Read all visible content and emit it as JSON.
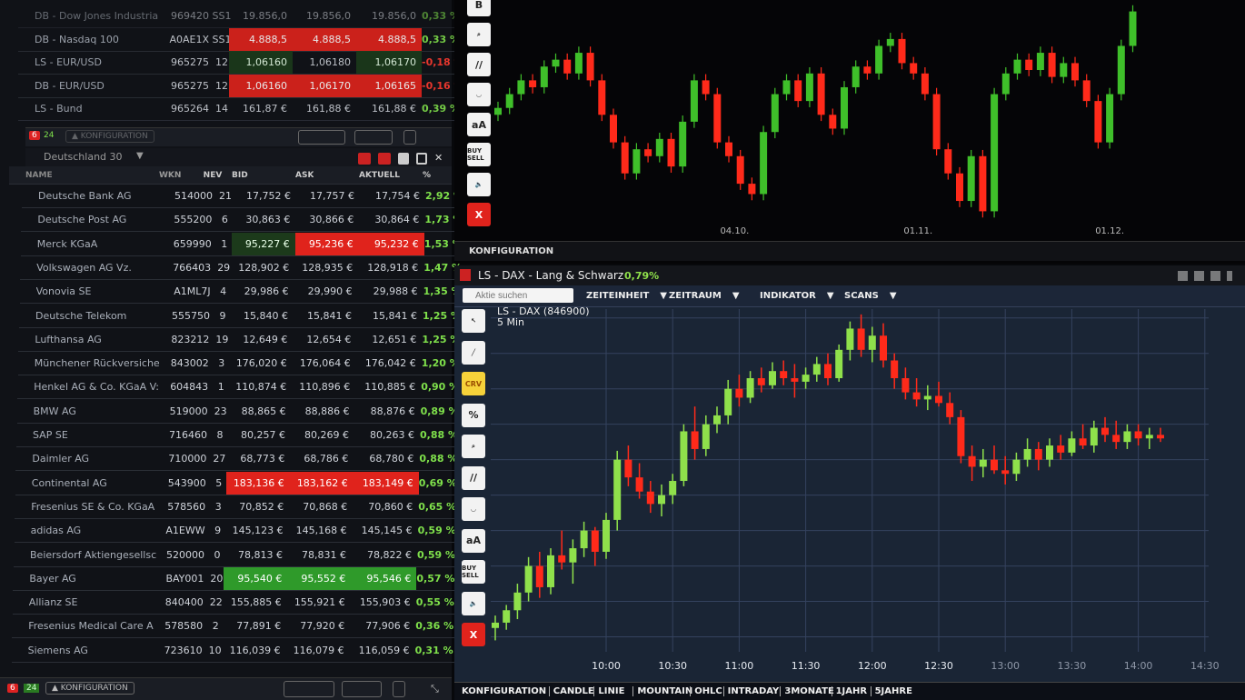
{
  "top_table": {
    "rows": [
      {
        "name": "DB - Dow Jones Industria",
        "wkn": "969420",
        "nev": "SS1",
        "bid": "19.856,0",
        "ask": "19.856,0",
        "akt": "19.856,0",
        "pct": "0,33 %",
        "dir": "up",
        "hl": [
          "",
          "",
          ""
        ]
      },
      {
        "name": "DB - Nasdaq 100",
        "wkn": "A0AE1X",
        "nev": "SS1",
        "bid": "4.888,5",
        "ask": "4.888,5",
        "akt": "4.888,5",
        "pct": "0,33 %",
        "dir": "up",
        "hl": [
          "r",
          "r",
          "r"
        ]
      },
      {
        "name": "LS - EUR/USD",
        "wkn": "965275",
        "nev": "12",
        "bid": "1,06160",
        "ask": "1,06180",
        "akt": "1,06170",
        "pct": "-0,18 %",
        "dir": "dn",
        "hl": [
          "dg",
          "",
          "dg"
        ]
      },
      {
        "name": "DB - EUR/USD",
        "wkn": "965275",
        "nev": "12",
        "bid": "1,06160",
        "ask": "1,06170",
        "akt": "1,06165",
        "pct": "-0,16 %",
        "dir": "dn",
        "hl": [
          "r",
          "r",
          "r"
        ]
      },
      {
        "name": "LS - Bund",
        "wkn": "965264",
        "nev": "14",
        "bid": "161,87 €",
        "ask": "161,88 €",
        "akt": "161,88 €",
        "pct": "0,39 %",
        "dir": "up",
        "hl": [
          "",
          "",
          ""
        ]
      }
    ],
    "badge_red": "6",
    "badge_green": "24",
    "config": "▲ KONFIGURATION"
  },
  "list": {
    "title": "Deutschland 30",
    "columns": {
      "name": "NAME",
      "wkn": "WKN",
      "nev": "NEV",
      "bid": "BID",
      "ask": "ASK",
      "akt": "AKTUELL",
      "pct": "%"
    },
    "rows": [
      {
        "name": "Deutsche Bank AG",
        "wkn": "514000",
        "nev": "21",
        "bid": "17,752 €",
        "ask": "17,757 €",
        "akt": "17,754 €",
        "pct": "2,92 %",
        "hl": [
          "",
          "",
          ""
        ]
      },
      {
        "name": "Deutsche Post AG",
        "wkn": "555200",
        "nev": "6",
        "bid": "30,863 €",
        "ask": "30,866 €",
        "akt": "30,864 €",
        "pct": "1,73 %",
        "hl": [
          "",
          "",
          ""
        ]
      },
      {
        "name": "Merck KGaA",
        "wkn": "659990",
        "nev": "1",
        "bid": "95,227 €",
        "ask": "95,236 €",
        "akt": "95,232 €",
        "pct": "1,53 %",
        "hl": [
          "dg",
          "r",
          "r"
        ]
      },
      {
        "name": "Volkswagen AG Vz.",
        "wkn": "766403",
        "nev": "29",
        "bid": "128,902 €",
        "ask": "128,935 €",
        "akt": "128,918 €",
        "pct": "1,47 %",
        "hl": [
          "",
          "",
          ""
        ]
      },
      {
        "name": "Vonovia SE",
        "wkn": "A1ML7J",
        "nev": "4",
        "bid": "29,986 €",
        "ask": "29,990 €",
        "akt": "29,988 €",
        "pct": "1,35 %",
        "hl": [
          "",
          "",
          ""
        ]
      },
      {
        "name": "Deutsche Telekom",
        "wkn": "555750",
        "nev": "9",
        "bid": "15,840 €",
        "ask": "15,841 €",
        "akt": "15,841 €",
        "pct": "1,25 %",
        "hl": [
          "",
          "",
          ""
        ]
      },
      {
        "name": "Lufthansa AG",
        "wkn": "823212",
        "nev": "19",
        "bid": "12,649 €",
        "ask": "12,654 €",
        "akt": "12,651 €",
        "pct": "1,25 %",
        "hl": [
          "",
          "",
          ""
        ]
      },
      {
        "name": "Münchener Rückversiche",
        "wkn": "843002",
        "nev": "3",
        "bid": "176,020 €",
        "ask": "176,064 €",
        "akt": "176,042 €",
        "pct": "1,20 %",
        "hl": [
          "",
          "",
          ""
        ]
      },
      {
        "name": "Henkel AG & Co. KGaA V:",
        "wkn": "604843",
        "nev": "1",
        "bid": "110,874 €",
        "ask": "110,896 €",
        "akt": "110,885 €",
        "pct": "0,90 %",
        "hl": [
          "",
          "",
          ""
        ]
      },
      {
        "name": "BMW AG",
        "wkn": "519000",
        "nev": "23",
        "bid": "88,865 €",
        "ask": "88,886 €",
        "akt": "88,876 €",
        "pct": "0,89 %",
        "hl": [
          "",
          "",
          ""
        ]
      },
      {
        "name": "SAP SE",
        "wkn": "716460",
        "nev": "8",
        "bid": "80,257 €",
        "ask": "80,269 €",
        "akt": "80,263 €",
        "pct": "0,88 %",
        "hl": [
          "",
          "",
          ""
        ]
      },
      {
        "name": "Daimler AG",
        "wkn": "710000",
        "nev": "27",
        "bid": "68,773 €",
        "ask": "68,786 €",
        "akt": "68,780 €",
        "pct": "0,88 %",
        "hl": [
          "",
          "",
          ""
        ]
      },
      {
        "name": "Continental AG",
        "wkn": "543900",
        "nev": "5",
        "bid": "183,136 €",
        "ask": "183,162 €",
        "akt": "183,149 €",
        "pct": "0,69 %",
        "hl": [
          "r",
          "r",
          "r"
        ]
      },
      {
        "name": "Fresenius SE & Co. KGaA",
        "wkn": "578560",
        "nev": "3",
        "bid": "70,852 €",
        "ask": "70,868 €",
        "akt": "70,860 €",
        "pct": "0,65 %",
        "hl": [
          "",
          "",
          ""
        ]
      },
      {
        "name": "adidas AG",
        "wkn": "A1EWW",
        "nev": "9",
        "bid": "145,123 €",
        "ask": "145,168 €",
        "akt": "145,145 €",
        "pct": "0,59 %",
        "hl": [
          "",
          "",
          ""
        ]
      },
      {
        "name": "Beiersdorf Aktiengesellsc",
        "wkn": "520000",
        "nev": "0",
        "bid": "78,813 €",
        "ask": "78,831 €",
        "akt": "78,822 €",
        "pct": "0,59 %",
        "hl": [
          "",
          "",
          ""
        ]
      },
      {
        "name": "Bayer AG",
        "wkn": "BAY001",
        "nev": "20",
        "bid": "95,540 €",
        "ask": "95,552 €",
        "akt": "95,546 €",
        "pct": "0,57 %",
        "hl": [
          "g",
          "g",
          "g"
        ]
      },
      {
        "name": "Allianz SE",
        "wkn": "840400",
        "nev": "22",
        "bid": "155,885 €",
        "ask": "155,921 €",
        "akt": "155,903 €",
        "pct": "0,55 %",
        "hl": [
          "",
          "",
          ""
        ]
      },
      {
        "name": "Fresenius Medical Care A",
        "wkn": "578580",
        "nev": "2",
        "bid": "77,891 €",
        "ask": "77,920 €",
        "akt": "77,906 €",
        "pct": "0,36 %",
        "hl": [
          "",
          "",
          ""
        ]
      },
      {
        "name": "Siemens AG",
        "wkn": "723610",
        "nev": "10",
        "bid": "116,039 €",
        "ask": "116,079 €",
        "akt": "116,059 €",
        "pct": "0,31 %",
        "hl": [
          "",
          "",
          ""
        ]
      }
    ],
    "badge_red": "6",
    "badge_green": "24",
    "config": "▲ KONFIGURATION"
  },
  "top_chart": {
    "config": "KONFIGURATION",
    "tools": [
      "B",
      "search",
      "//",
      "curve",
      "aA",
      "BUY SELL",
      "speaker",
      "X"
    ]
  },
  "lower_chart": {
    "title": "LS - DAX - Lang & Schwarz",
    "change": "0,79%",
    "search_placeholder": "Aktie suchen",
    "menus": [
      "ZEITEINHEIT",
      "ZEITRAUM",
      "INDIKATOR",
      "SCANS"
    ],
    "instrument": "LS - DAX (846900)",
    "interval": "5 Min",
    "tools": [
      "cursor",
      "line",
      "CRV",
      "%",
      "search",
      "//",
      "curve",
      "aA",
      "BUY SELL",
      "speaker",
      "X"
    ],
    "bottom_menu": [
      "KONFIGURATION",
      "CANDLE",
      "LINIE",
      "MOUNTAIN",
      "OHLC",
      "INTRADAY",
      "3MONATE",
      "1JAHR",
      "5JAHRE"
    ]
  },
  "colors": {
    "up": "#8fe04b",
    "down": "#ff2a1a",
    "top_up": "#3fbf2a",
    "top_down": "#ff2a1a"
  },
  "chart_data": [
    {
      "type": "candlestick",
      "name_shown": "",
      "x_ticks": [
        "04.10.",
        "01.11.",
        "01.12."
      ],
      "x_tick_index": [
        20.5,
        36.4,
        53
      ],
      "first_open": 10500,
      "closes": [
        10520,
        10560,
        10600,
        10580,
        10640,
        10660,
        10620,
        10680,
        10600,
        10500,
        10420,
        10330,
        10400,
        10380,
        10430,
        10350,
        10480,
        10600,
        10560,
        10420,
        10380,
        10300,
        10270,
        10450,
        10560,
        10600,
        10540,
        10620,
        10500,
        10460,
        10580,
        10640,
        10620,
        10700,
        10720,
        10650,
        10620,
        10560,
        10400,
        10330,
        10250,
        10380,
        10220,
        10560,
        10620,
        10660,
        10630,
        10680,
        10610,
        10650,
        10600,
        10540,
        10420,
        10560,
        10700,
        10800
      ],
      "ylim": [
        10200,
        10820
      ]
    },
    {
      "type": "candlestick",
      "title": "LS - DAX (846900)",
      "interval": "5 Min",
      "x_ticks": [
        "10:00",
        "10:30",
        "11:00",
        "11:30",
        "12:00",
        "12:30",
        "13:00",
        "13:30",
        "14:00",
        "14:30"
      ],
      "ohlc": [
        [
          11085,
          11092,
          11078,
          11088
        ],
        [
          11088,
          11098,
          11084,
          11095
        ],
        [
          11095,
          11110,
          11090,
          11105
        ],
        [
          11105,
          11125,
          11100,
          11120
        ],
        [
          11120,
          11128,
          11102,
          11108
        ],
        [
          11108,
          11130,
          11104,
          11126
        ],
        [
          11126,
          11140,
          11118,
          11122
        ],
        [
          11122,
          11135,
          11110,
          11130
        ],
        [
          11130,
          11145,
          11125,
          11140
        ],
        [
          11140,
          11142,
          11120,
          11128
        ],
        [
          11128,
          11150,
          11124,
          11146
        ],
        [
          11146,
          11185,
          11140,
          11180
        ],
        [
          11180,
          11188,
          11165,
          11170
        ],
        [
          11170,
          11178,
          11158,
          11162
        ],
        [
          11162,
          11168,
          11150,
          11155
        ],
        [
          11155,
          11166,
          11148,
          11160
        ],
        [
          11160,
          11172,
          11155,
          11168
        ],
        [
          11168,
          11200,
          11165,
          11196
        ],
        [
          11196,
          11210,
          11180,
          11186
        ],
        [
          11186,
          11205,
          11182,
          11200
        ],
        [
          11200,
          11210,
          11195,
          11205
        ],
        [
          11205,
          11225,
          11200,
          11220
        ],
        [
          11220,
          11228,
          11210,
          11215
        ],
        [
          11215,
          11230,
          11212,
          11226
        ],
        [
          11226,
          11232,
          11218,
          11222
        ],
        [
          11222,
          11235,
          11220,
          11230
        ],
        [
          11230,
          11236,
          11222,
          11226
        ],
        [
          11226,
          11234,
          11215,
          11224
        ],
        [
          11224,
          11232,
          11220,
          11228
        ],
        [
          11228,
          11238,
          11224,
          11234
        ],
        [
          11234,
          11240,
          11222,
          11226
        ],
        [
          11226,
          11245,
          11224,
          11242
        ],
        [
          11242,
          11258,
          11236,
          11254
        ],
        [
          11254,
          11262,
          11238,
          11242
        ],
        [
          11242,
          11255,
          11235,
          11250
        ],
        [
          11250,
          11257,
          11232,
          11236
        ],
        [
          11236,
          11240,
          11220,
          11226
        ],
        [
          11226,
          11232,
          11214,
          11218
        ],
        [
          11218,
          11226,
          11210,
          11214
        ],
        [
          11214,
          11222,
          11208,
          11216
        ],
        [
          11216,
          11224,
          11210,
          11212
        ],
        [
          11212,
          11218,
          11200,
          11204
        ],
        [
          11204,
          11208,
          11178,
          11182
        ],
        [
          11182,
          11188,
          11168,
          11176
        ],
        [
          11176,
          11186,
          11170,
          11180
        ],
        [
          11180,
          11188,
          11172,
          11174
        ],
        [
          11174,
          11182,
          11166,
          11172
        ],
        [
          11172,
          11184,
          11168,
          11180
        ],
        [
          11180,
          11192,
          11176,
          11186
        ],
        [
          11186,
          11190,
          11174,
          11180
        ],
        [
          11180,
          11192,
          11176,
          11188
        ],
        [
          11188,
          11194,
          11180,
          11184
        ],
        [
          11184,
          11196,
          11182,
          11192
        ],
        [
          11192,
          11200,
          11186,
          11188
        ],
        [
          11188,
          11202,
          11184,
          11198
        ],
        [
          11198,
          11204,
          11190,
          11194
        ],
        [
          11194,
          11202,
          11186,
          11190
        ],
        [
          11190,
          11200,
          11186,
          11196
        ],
        [
          11196,
          11200,
          11188,
          11192
        ],
        [
          11192,
          11198,
          11186,
          11194
        ],
        [
          11194,
          11198,
          11190,
          11192
        ]
      ],
      "first_time": "09:10",
      "ylim": [
        11070,
        11265
      ],
      "grid": true
    }
  ]
}
